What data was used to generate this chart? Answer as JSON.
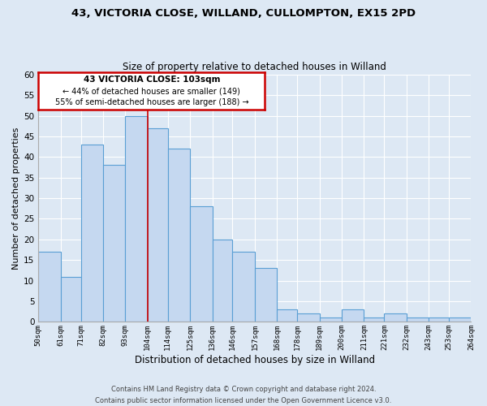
{
  "title1": "43, VICTORIA CLOSE, WILLAND, CULLOMPTON, EX15 2PD",
  "title2": "Size of property relative to detached houses in Willand",
  "xlabel": "Distribution of detached houses by size in Willand",
  "ylabel": "Number of detached properties",
  "bar_edges": [
    50,
    61,
    71,
    82,
    93,
    104,
    114,
    125,
    136,
    146,
    157,
    168,
    178,
    189,
    200,
    211,
    221,
    232,
    243,
    253,
    264
  ],
  "bar_heights": [
    17,
    11,
    43,
    38,
    50,
    47,
    42,
    28,
    20,
    17,
    13,
    3,
    2,
    1,
    3,
    1,
    2,
    1,
    1,
    1
  ],
  "bar_color": "#c5d8f0",
  "bar_edge_color": "#5a9fd4",
  "tick_labels": [
    "50sqm",
    "61sqm",
    "71sqm",
    "82sqm",
    "93sqm",
    "104sqm",
    "114sqm",
    "125sqm",
    "136sqm",
    "146sqm",
    "157sqm",
    "168sqm",
    "178sqm",
    "189sqm",
    "200sqm",
    "211sqm",
    "221sqm",
    "232sqm",
    "243sqm",
    "253sqm",
    "264sqm"
  ],
  "vline_x": 104,
  "vline_color": "#cc0000",
  "annotation_line1": "43 VICTORIA CLOSE: 103sqm",
  "annotation_line2": "← 44% of detached houses are smaller (149)",
  "annotation_line3": "55% of semi-detached houses are larger (188) →",
  "annotation_box_edge": "#cc0000",
  "ylim": [
    0,
    60
  ],
  "yticks": [
    0,
    5,
    10,
    15,
    20,
    25,
    30,
    35,
    40,
    45,
    50,
    55,
    60
  ],
  "footer1": "Contains HM Land Registry data © Crown copyright and database right 2024.",
  "footer2": "Contains public sector information licensed under the Open Government Licence v3.0.",
  "bg_color": "#dde8f4",
  "plot_bg": "#dde8f4",
  "grid_color": "#ffffff"
}
